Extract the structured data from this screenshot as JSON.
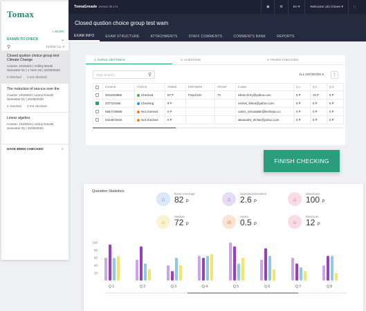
{
  "sidebar": {
    "logo": "Tomax",
    "work_link": "< WORK",
    "exams_to_check": "EXAMS TO CHECK",
    "show_all": "SHOW ALL ▾",
    "items": [
      {
        "title": "Closed qustion choice group test Climate Change",
        "line1": "Course: 101934S  |  Ashley Barak",
        "line2": "Semester 01  |  1 Term 02  |  20/30/2020",
        "checked": "2 checked",
        "not_checked": "3 not checked"
      },
      {
        "title": "The reduction of sea-ice over the",
        "line1": "Course: 101934S  |  Lenny Kravitz",
        "line2": "Semester 01  |  20/30/2020",
        "checked": "2 checked",
        "not_checked": "3 not checked"
      },
      {
        "title": "Linear algebra",
        "line1": "Course: 101934S  |  Lenny Kravitz",
        "line2": "Semester 01  |  20/30/2020",
        "checked": "",
        "not_checked": ""
      }
    ],
    "have_been_checked": "HAVE BEEN CHECKED"
  },
  "topbar": {
    "brand": "TomaGreade",
    "version": "Version 39.174",
    "lang": "En",
    "welcome": "Welcome Liki Cheen"
  },
  "exam_title": "Closed qustion choice group test wam",
  "tabs": [
    "EXAM INFO",
    "EXAM STRUCTURE",
    "ATTACHMENTS",
    "STAFF COMMENTS",
    "COMMENTS BANK",
    "REPORTS"
  ],
  "steps": [
    "1. INITIAL SETTINGS",
    "2. CHECKING",
    "3. FINISH CHECKING"
  ],
  "search_placeholder": "Type Search...",
  "notebook_filter": "ALL NOTBOOK ▾",
  "table": {
    "headers": [
      "EXAM ID",
      "STATUS",
      "GRADE",
      "PARTNERS",
      "GROUP",
      "E-MAIL",
      "Q.1",
      "Q.2",
      "Q.3"
    ],
    "rows": [
      {
        "checked": false,
        "id": "3011043656",
        "status": "Checked",
        "status_color": "#4caf50",
        "grade": "87 P",
        "partners": "Floyd Kim",
        "group": "72",
        "email": "eileen.ferry@yahoo.com",
        "q1": "5 P",
        "q2": "10 P",
        "q3": "5 P"
      },
      {
        "checked": true,
        "id": "227724168",
        "status": "Checking",
        "status_color": "#2196f3",
        "grade": "8 P",
        "partners": "",
        "group": "",
        "email": "reichel_felton@yahoo.com",
        "q1": "5 P",
        "q2": "5 P",
        "q3": "5 P"
      },
      {
        "checked": false,
        "id": "0657745559",
        "status": "Not checked",
        "status_color": "#ff7a1a",
        "grade": "0 P",
        "partners": "",
        "group": "",
        "email": "carter_schowalter@keshaun.co",
        "q1": "0 P",
        "q2": "0 P",
        "q3": "0 P"
      },
      {
        "checked": false,
        "id": "0344572533",
        "status": "Not checked",
        "status_color": "#ff7a1a",
        "grade": "0 P",
        "partners": "",
        "group": "",
        "email": "alexandre_ritchie@yahoo.com",
        "q1": "0 P",
        "q2": "0 P",
        "q3": "0 P"
      }
    ]
  },
  "finish_button": "FINISH CHECKING",
  "stats": {
    "title": "Question Statistics",
    "items": [
      {
        "label": "Exam Average",
        "value": "82",
        "unit": "P",
        "icon": "chart-icon",
        "bg": "#dde7fb",
        "fg": "#5b7fd6"
      },
      {
        "label": "Standard deviation",
        "value": "2.6",
        "unit": "P",
        "icon": "chart-icon",
        "bg": "#e6dcf7",
        "fg": "#8a5cd6"
      },
      {
        "label": "Maximum",
        "value": "100",
        "unit": "P",
        "icon": "chart-icon",
        "bg": "#f7dde3",
        "fg": "#d65c7a"
      },
      {
        "label": "Median",
        "value": "72",
        "unit": "P",
        "icon": "chart-icon",
        "bg": "#faf3cf",
        "fg": "#c9a818"
      },
      {
        "label": "Alpha",
        "value": "0.5",
        "unit": "P",
        "icon": "alpha-icon",
        "bg": "#fde3d3",
        "fg": "#e77b3d"
      },
      {
        "label": "Minimum",
        "value": "12",
        "unit": "P",
        "icon": "chart-icon",
        "bg": "#f7dde3",
        "fg": "#d65c7a"
      }
    ]
  },
  "chart_data": {
    "type": "bar",
    "categories": [
      "Q 1",
      "Q 2",
      "Q 3",
      "Q 4",
      "Q 5",
      "Q 6",
      "Q 7",
      "Q 8"
    ],
    "yticks": [
      "100",
      "80",
      "60",
      "40",
      "20"
    ],
    "ylim": [
      0,
      100
    ],
    "colors": [
      "#c9a6ec",
      "#9b3fbf",
      "#8fc7f0",
      "#f4e56b"
    ],
    "series": [
      {
        "values": [
          60,
          55,
          40,
          65,
          100,
          55,
          60,
          40
        ]
      },
      {
        "values": [
          95,
          90,
          25,
          60,
          90,
          85,
          45,
          65
        ]
      },
      {
        "values": [
          60,
          45,
          60,
          65,
          45,
          65,
          35,
          65
        ]
      },
      {
        "values": [
          65,
          30,
          40,
          70,
          60,
          30,
          25,
          20
        ]
      }
    ]
  }
}
